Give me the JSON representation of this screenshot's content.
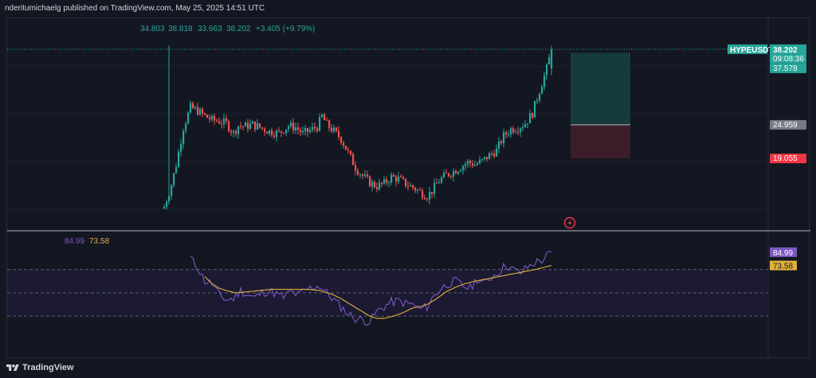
{
  "header": {
    "published_text": "nderitumichaelg published on TradingView.com, May 25, 2025 14:51 UTC"
  },
  "footer": {
    "brand": "TradingView"
  },
  "colors": {
    "background": "#131722",
    "up": "#26a69a",
    "down": "#ef5350",
    "rsi": "#7e57c2",
    "rsi_ma": "#e0b13a",
    "target_zone": "#163b3a",
    "stop_zone": "#3b1e29",
    "target_label": "#26a69a",
    "stop_label": "#f23645",
    "entry_label": "#787b86"
  },
  "chart_data": [
    {
      "type": "candlestick",
      "symbol": "HYPEUSDT",
      "ohlc_legend": {
        "open": "34.803",
        "high": "38.818",
        "low": "33.663",
        "close": "38.202",
        "change": "+3.405 (+9.79%)"
      },
      "last_price": "38.202",
      "countdown": "09:08:36",
      "ylim": [
        9.6,
        42.5
      ],
      "close_path_keypoints": [
        [
          0,
          10.6
        ],
        [
          3,
          14.5
        ],
        [
          5,
          18.0
        ],
        [
          8,
          24.5
        ],
        [
          11,
          28.0
        ],
        [
          14,
          27.4
        ],
        [
          17,
          26.5
        ],
        [
          20,
          25.8
        ],
        [
          23,
          25.6
        ],
        [
          26,
          25.2
        ],
        [
          29,
          23.5
        ],
        [
          31,
          24.8
        ],
        [
          34,
          24.7
        ],
        [
          37,
          25.0
        ],
        [
          40,
          24.5
        ],
        [
          44,
          23.8
        ],
        [
          48,
          23.5
        ],
        [
          52,
          24.8
        ],
        [
          55,
          24.5
        ],
        [
          58,
          23.4
        ],
        [
          61,
          24.0
        ],
        [
          64,
          24.6
        ],
        [
          66,
          26.5
        ],
        [
          68,
          25.0
        ],
        [
          71,
          23.8
        ],
        [
          74,
          22.5
        ],
        [
          77,
          20.0
        ],
        [
          80,
          17.5
        ],
        [
          83,
          16.0
        ],
        [
          86,
          14.8
        ],
        [
          89,
          14.2
        ],
        [
          92,
          14.7
        ],
        [
          95,
          15.8
        ],
        [
          98,
          15.5
        ],
        [
          101,
          14.6
        ],
        [
          104,
          14.0
        ],
        [
          107,
          13.2
        ],
        [
          110,
          12.5
        ],
        [
          112,
          13.4
        ],
        [
          115,
          15.2
        ],
        [
          118,
          16.2
        ],
        [
          121,
          16.8
        ],
        [
          124,
          17.6
        ],
        [
          127,
          18.4
        ],
        [
          130,
          18.0
        ],
        [
          133,
          18.6
        ],
        [
          136,
          19.6
        ],
        [
          139,
          20.5
        ],
        [
          142,
          23.0
        ],
        [
          145,
          24.2
        ],
        [
          148,
          24.5
        ],
        [
          151,
          25.2
        ],
        [
          154,
          27.0
        ],
        [
          157,
          31.0
        ],
        [
          160,
          34.8
        ],
        [
          162,
          38.2
        ]
      ],
      "spike": {
        "index": 2,
        "high": 38.818
      },
      "axis_labels": [
        {
          "text": "HYPEUSDT",
          "kind": "symbol"
        },
        {
          "text": "38.202",
          "kind": "last"
        },
        {
          "text": "09:08:36",
          "kind": "countdown"
        },
        {
          "text": "37.578",
          "kind": "target"
        },
        {
          "text": "24.959",
          "kind": "entry"
        },
        {
          "text": "19.055",
          "kind": "stop"
        }
      ],
      "position": {
        "side": "long",
        "entry": 24.959,
        "target": 37.578,
        "stop": 19.055,
        "bar_from": 170,
        "bar_to": 195
      }
    },
    {
      "type": "line",
      "name": "RSI",
      "legend": {
        "rsi": "84.99",
        "ma": "73.58"
      },
      "ylim": [
        0,
        100
      ],
      "bands": {
        "upper": 70,
        "middle": 50,
        "lower": 30
      },
      "series": [
        {
          "name": "RSI",
          "keypoints": [
            [
              11,
              80
            ],
            [
              14,
              72
            ],
            [
              17,
              60
            ],
            [
              20,
              58
            ],
            [
              23,
              48
            ],
            [
              26,
              44
            ],
            [
              29,
              45
            ],
            [
              32,
              52
            ],
            [
              35,
              48
            ],
            [
              38,
              46
            ],
            [
              41,
              50
            ],
            [
              44,
              52
            ],
            [
              47,
              49
            ],
            [
              50,
              46
            ],
            [
              53,
              51
            ],
            [
              56,
              48
            ],
            [
              59,
              52
            ],
            [
              62,
              55
            ],
            [
              65,
              56
            ],
            [
              68,
              50
            ],
            [
              71,
              44
            ],
            [
              74,
              38
            ],
            [
              77,
              32
            ],
            [
              80,
              28
            ],
            [
              83,
              27
            ],
            [
              86,
              25
            ],
            [
              89,
              34
            ],
            [
              92,
              38
            ],
            [
              95,
              42
            ],
            [
              98,
              43
            ],
            [
              101,
              41
            ],
            [
              104,
              40
            ],
            [
              107,
              36
            ],
            [
              110,
              38
            ],
            [
              113,
              48
            ],
            [
              116,
              54
            ],
            [
              119,
              58
            ],
            [
              122,
              60
            ],
            [
              125,
              56
            ],
            [
              128,
              54
            ],
            [
              131,
              62
            ],
            [
              134,
              58
            ],
            [
              137,
              64
            ],
            [
              140,
              68
            ],
            [
              143,
              74
            ],
            [
              146,
              70
            ],
            [
              149,
              67
            ],
            [
              152,
              72
            ],
            [
              155,
              76
            ],
            [
              158,
              78
            ],
            [
              162,
              84.99
            ]
          ],
          "last": 84.99
        },
        {
          "name": "RSI-based MA",
          "keypoints": [
            [
              17,
              64
            ],
            [
              20,
              58
            ],
            [
              23,
              54
            ],
            [
              26,
              52
            ],
            [
              30,
              50
            ],
            [
              35,
              51
            ],
            [
              40,
              52
            ],
            [
              45,
              53
            ],
            [
              50,
              53
            ],
            [
              55,
              53
            ],
            [
              60,
              53
            ],
            [
              65,
              52
            ],
            [
              70,
              49
            ],
            [
              74,
              45
            ],
            [
              78,
              40
            ],
            [
              82,
              35
            ],
            [
              86,
              30
            ],
            [
              89,
              28
            ],
            [
              92,
              28
            ],
            [
              96,
              30
            ],
            [
              100,
              33
            ],
            [
              104,
              37
            ],
            [
              107,
              38
            ],
            [
              110,
              40
            ],
            [
              114,
              45
            ],
            [
              118,
              51
            ],
            [
              122,
              55
            ],
            [
              126,
              58
            ],
            [
              130,
              60
            ],
            [
              135,
              62
            ],
            [
              140,
              64
            ],
            [
              145,
              66
            ],
            [
              150,
              68
            ],
            [
              155,
              70
            ],
            [
              159,
              72
            ],
            [
              162,
              73.58
            ]
          ],
          "last": 73.58
        }
      ]
    }
  ]
}
